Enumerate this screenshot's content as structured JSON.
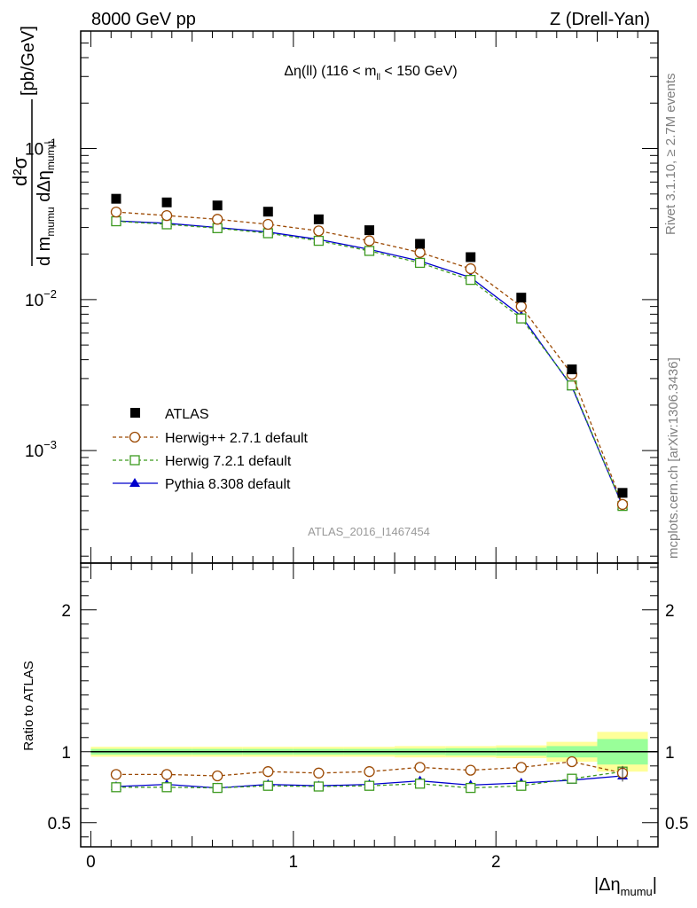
{
  "header": {
    "left": "8000 GeV pp",
    "right": "Z (Drell-Yan)"
  },
  "side_labels": {
    "rivet": "Rivet 3.1.10, ≥ 2.7M events",
    "mcplots": "mcplots.cern.ch [arXiv:1306.3436]"
  },
  "analysis_id": "ATLAS_2016_I1467454",
  "chart_data": [
    {
      "type": "scatter",
      "panel": "main",
      "title": "Δη(ll) (116 < m_ll < 150 GeV)",
      "title_parts": {
        "main": "Δη(ll) (116 < m",
        "sub": "ll",
        "tail": " < 150 GeV)"
      },
      "ylabel": "d²σ / d m_mumu dΔη_mumu [pb/GeV]",
      "ylabel_parts": {
        "num": "d²σ",
        "den_a": "d m",
        "den_sub1": "mumu",
        "den_b": " dΔη",
        "den_sub2": "mumu",
        "unit": "[pb/GeV]"
      },
      "yscale": "log",
      "xlim": [
        -0.05,
        2.8
      ],
      "ylim": [
        0.00018,
        0.6
      ],
      "y_tick_labels": [
        {
          "value": 0.1,
          "base": "10",
          "exp": "−1"
        },
        {
          "value": 0.01,
          "base": "10",
          "exp": "−2"
        },
        {
          "value": 0.001,
          "base": "10",
          "exp": "−3"
        }
      ],
      "x": [
        0.125,
        0.375,
        0.625,
        0.875,
        1.125,
        1.375,
        1.625,
        1.875,
        2.125,
        2.375,
        2.625
      ],
      "series": [
        {
          "name": "ATLAS",
          "marker": "filled-square",
          "color": "#000000",
          "line": "none",
          "values": [
            0.0465,
            0.044,
            0.042,
            0.0382,
            0.034,
            0.0288,
            0.0234,
            0.0191,
            0.0103,
            0.00345,
            0.000525
          ]
        },
        {
          "name": "Herwig++ 2.7.1 default",
          "marker": "open-circle",
          "color": "#9c4a04",
          "line": "dashed",
          "values": [
            0.038,
            0.036,
            0.034,
            0.0315,
            0.0285,
            0.0245,
            0.0205,
            0.016,
            0.009,
            0.0032,
            0.00044
          ]
        },
        {
          "name": "Herwig 7.2.1 default",
          "marker": "open-square",
          "color": "#3d9a1f",
          "line": "dashed",
          "values": [
            0.033,
            0.0315,
            0.0297,
            0.0275,
            0.0245,
            0.021,
            0.0175,
            0.0135,
            0.0075,
            0.0027,
            0.00043
          ]
        },
        {
          "name": "Pythia 8.308 default",
          "marker": "filled-triangle",
          "color": "#0000cc",
          "line": "solid",
          "values": [
            0.0332,
            0.032,
            0.03,
            0.028,
            0.025,
            0.0215,
            0.018,
            0.014,
            0.0078,
            0.00265,
            0.00043
          ]
        }
      ],
      "legend_position": "lower-left"
    },
    {
      "type": "line",
      "panel": "ratio",
      "ylabel": "Ratio to ATLAS",
      "xlabel": "|Δη_mumu|",
      "xlabel_parts": {
        "main": "|Δη",
        "sub": "mumu",
        "tail": "|"
      },
      "xlim": [
        -0.05,
        2.8
      ],
      "ylim": [
        0.33,
        2.33
      ],
      "x_ticks": [
        0,
        1,
        2
      ],
      "y_ticks": [
        0.5,
        1,
        2
      ],
      "x_tick_labels": [
        "0",
        "1",
        "2"
      ],
      "y_tick_labels": [
        "0.5",
        "1",
        "2"
      ],
      "x": [
        0.125,
        0.375,
        0.625,
        0.875,
        1.125,
        1.375,
        1.625,
        1.875,
        2.125,
        2.375,
        2.625
      ],
      "bin_edges": [
        0,
        0.25,
        0.5,
        0.75,
        1.0,
        1.25,
        1.5,
        1.75,
        2.0,
        2.25,
        2.5,
        2.75
      ],
      "band_total_half_width": [
        0.035,
        0.035,
        0.035,
        0.035,
        0.035,
        0.035,
        0.04,
        0.04,
        0.045,
        0.07,
        0.14
      ],
      "band_stat_half_width": [
        0.02,
        0.02,
        0.02,
        0.02,
        0.02,
        0.02,
        0.022,
        0.025,
        0.028,
        0.04,
        0.09
      ],
      "series": [
        {
          "name": "Herwig++ 2.7.1 default",
          "marker": "open-circle",
          "color": "#9c4a04",
          "line": "dashed",
          "values": [
            0.84,
            0.84,
            0.83,
            0.86,
            0.85,
            0.86,
            0.89,
            0.87,
            0.89,
            0.93,
            0.85
          ]
        },
        {
          "name": "Herwig 7.2.1 default",
          "marker": "open-square",
          "color": "#3d9a1f",
          "line": "dashed",
          "values": [
            0.75,
            0.75,
            0.745,
            0.76,
            0.755,
            0.76,
            0.775,
            0.745,
            0.76,
            0.81,
            0.86
          ]
        },
        {
          "name": "Pythia 8.308 default",
          "marker": "filled-triangle",
          "color": "#0000cc",
          "line": "solid",
          "values": [
            0.755,
            0.77,
            0.745,
            0.77,
            0.76,
            0.77,
            0.795,
            0.765,
            0.78,
            0.8,
            0.83
          ]
        }
      ]
    }
  ],
  "colors": {
    "band_total": "#ffff99",
    "band_stat": "#99ff99",
    "axis": "#000000",
    "side_text": "#808080",
    "watermark": "#999999"
  }
}
